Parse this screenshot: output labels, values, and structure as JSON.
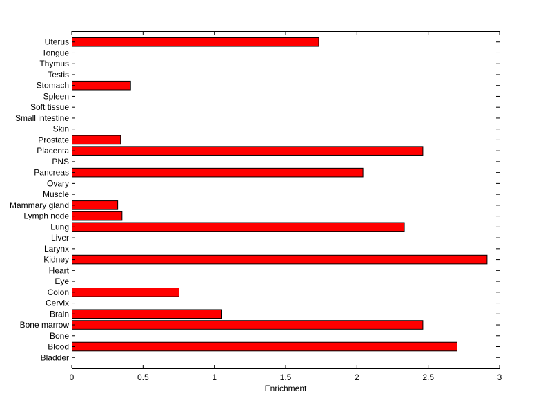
{
  "chart_data": {
    "type": "bar",
    "orientation": "horizontal",
    "title": "",
    "xlabel": "Enrichment",
    "ylabel": "",
    "xlim": [
      0,
      3
    ],
    "xticks": [
      "0",
      "0.5",
      "1",
      "1.5",
      "2",
      "2.5",
      "3"
    ],
    "categories": [
      "Bladder",
      "Blood",
      "Bone",
      "Bone marrow",
      "Brain",
      "Cervix",
      "Colon",
      "Eye",
      "Heart",
      "Kidney",
      "Larynx",
      "Liver",
      "Lung",
      "Lymph node",
      "Mammary gland",
      "Muscle",
      "Ovary",
      "Pancreas",
      "PNS",
      "Placenta",
      "Prostate",
      "Skin",
      "Small intestine",
      "Soft tissue",
      "Spleen",
      "Stomach",
      "Testis",
      "Thymus",
      "Tongue",
      "Uterus"
    ],
    "values": [
      0,
      2.7,
      0,
      2.46,
      1.05,
      0,
      0.75,
      0,
      0,
      2.91,
      0,
      0,
      2.33,
      0.35,
      0.32,
      0,
      0,
      2.04,
      0,
      2.46,
      0.34,
      0,
      0,
      0,
      0,
      0.41,
      0,
      0,
      0,
      1.73
    ],
    "bar_color": "#ff0000",
    "grid": false,
    "legend": "none"
  }
}
